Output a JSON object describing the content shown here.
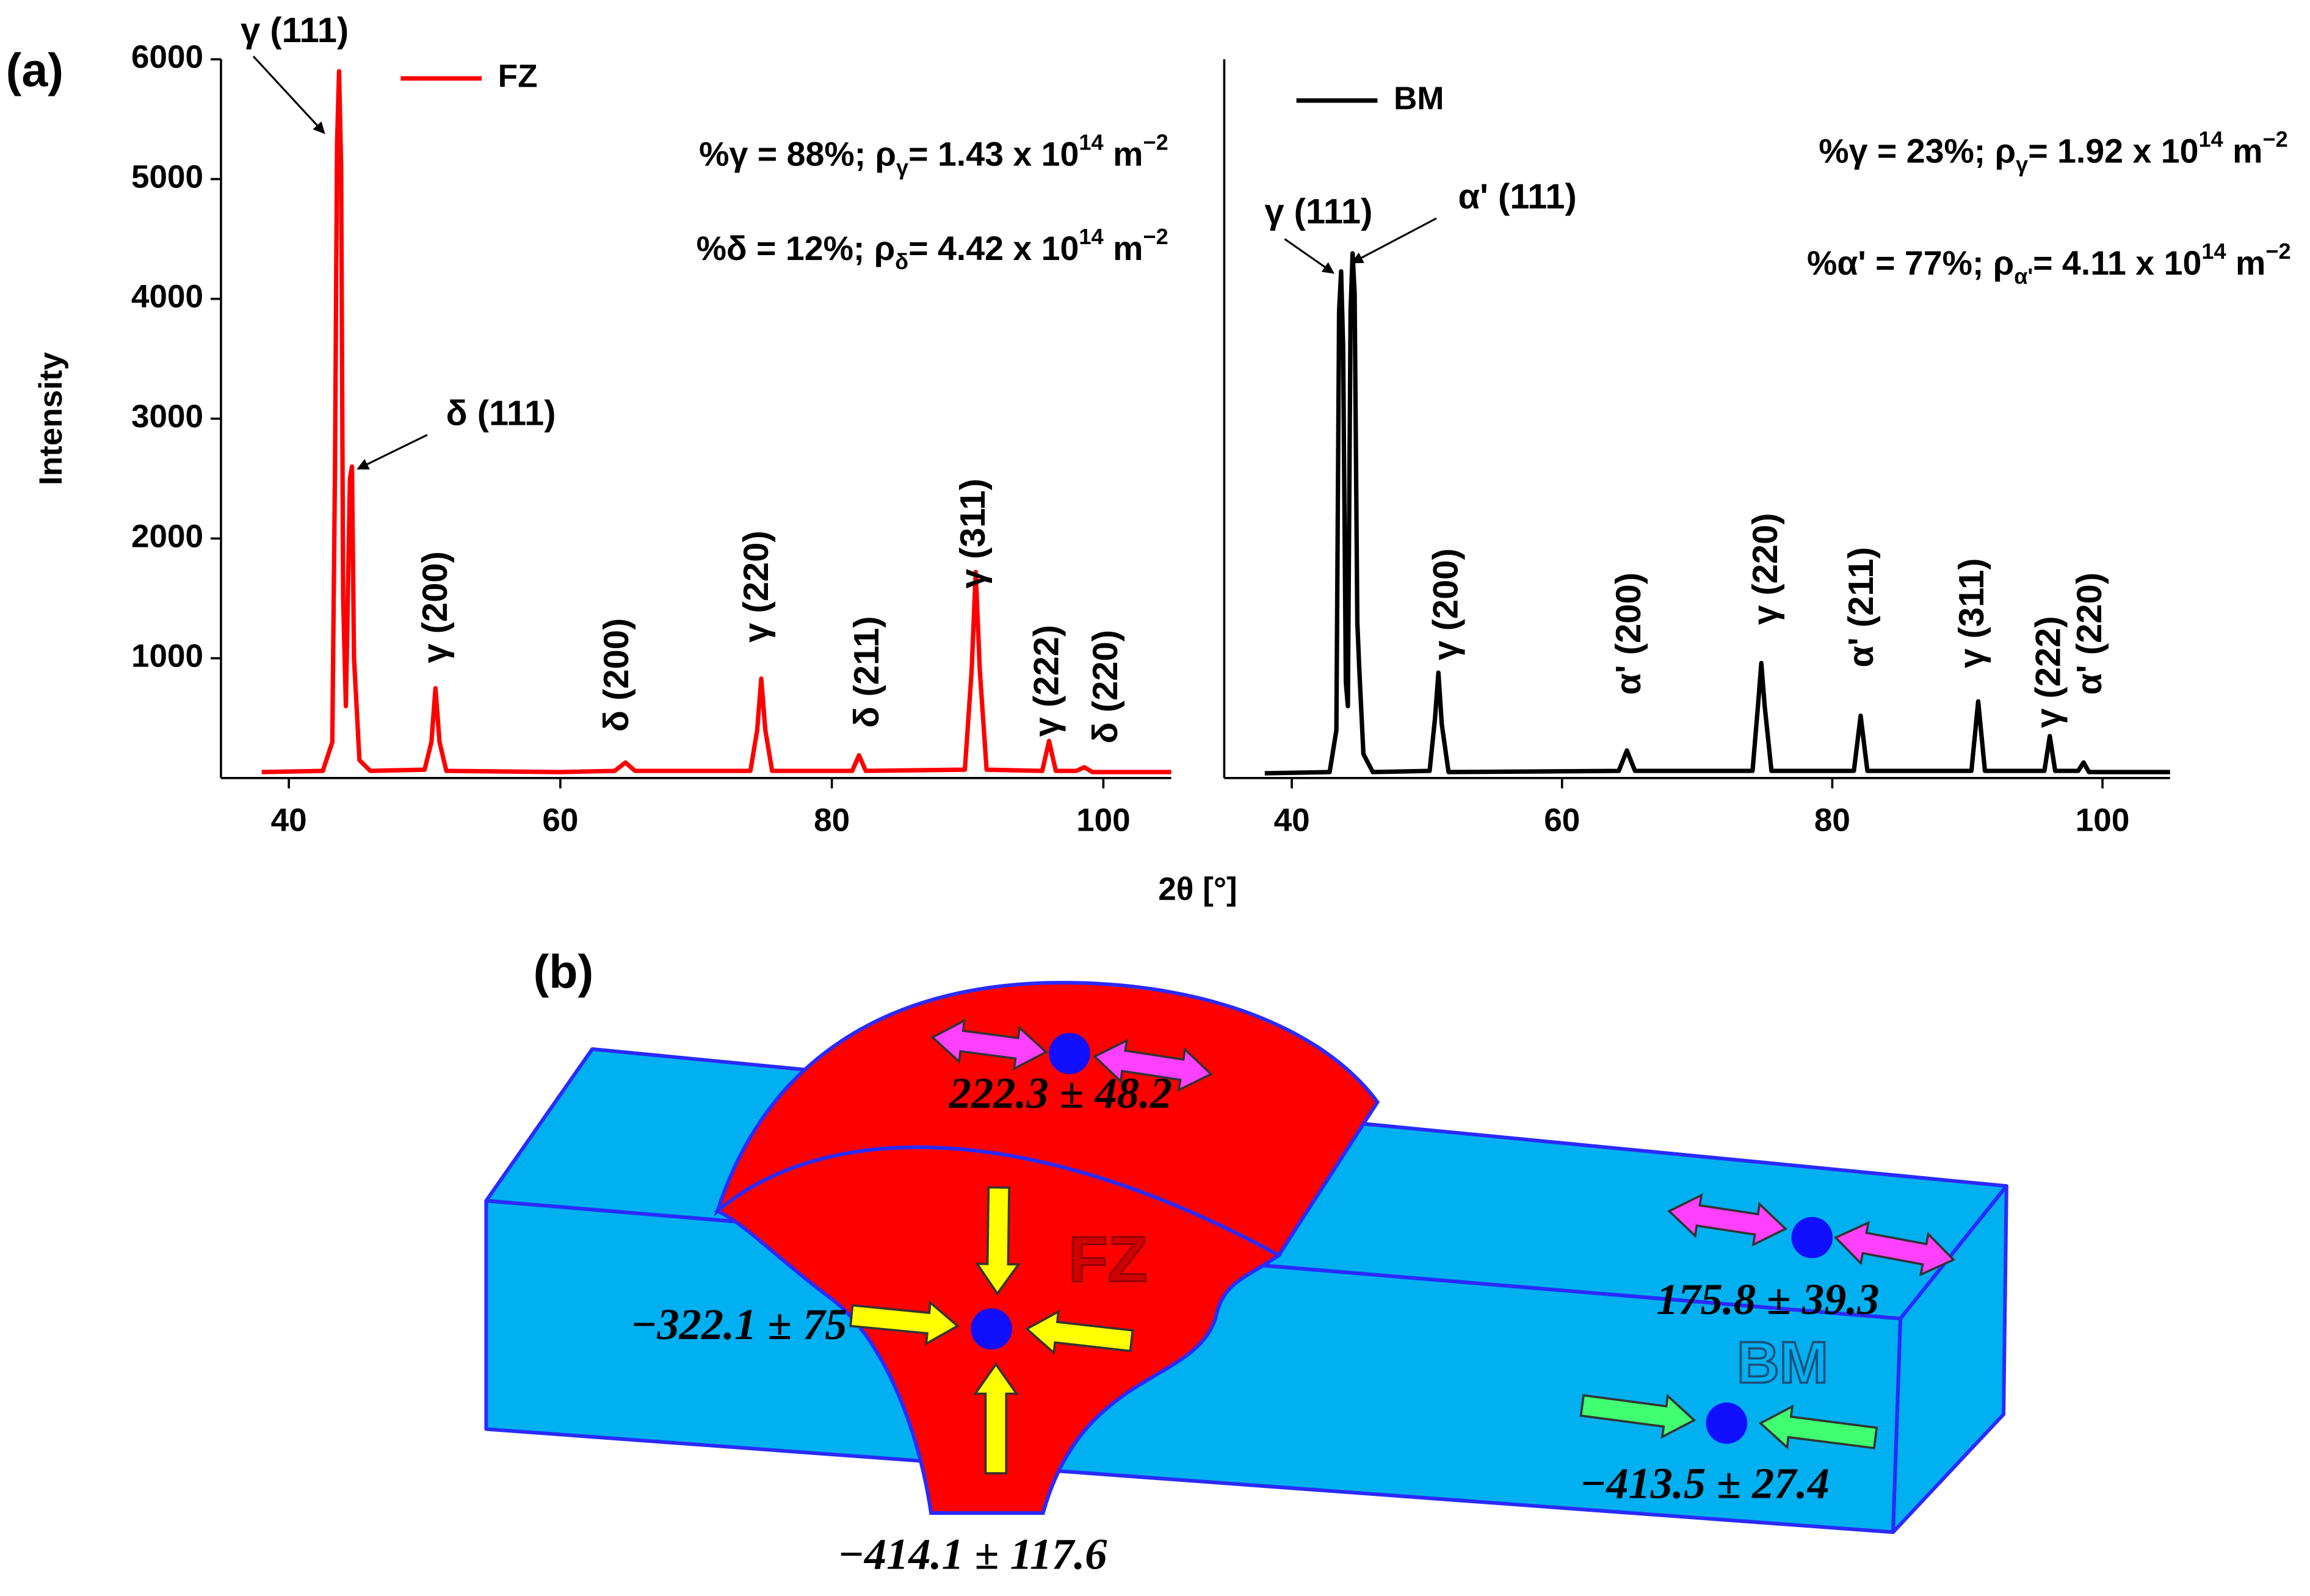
{
  "panels": {
    "a": "(a)",
    "b": "(b)"
  },
  "chart_data": [
    {
      "type": "line",
      "x_label": "2θ [°]",
      "y_label": "Intensity",
      "legend": "upper left",
      "xlim": [
        35,
        105
      ],
      "xticks": [
        40,
        60,
        80,
        100
      ],
      "ylim": [
        0,
        6000
      ],
      "yticks": [
        1000,
        2000,
        3000,
        4000,
        5000,
        6000
      ],
      "x": [
        38,
        42.5,
        43.2,
        43.4,
        43.55,
        43.7,
        43.85,
        44.0,
        44.2,
        44.5,
        44.65,
        44.8,
        45.2,
        46,
        50,
        50.5,
        50.8,
        51.1,
        51.6,
        60,
        64,
        64.8,
        65.5,
        74,
        74.5,
        74.8,
        75.1,
        75.6,
        81.5,
        82,
        82.5,
        89.8,
        90.3,
        90.6,
        90.9,
        91.4,
        95.5,
        96,
        96.5,
        98,
        98.6,
        99.2,
        105
      ],
      "series": [
        {
          "name": "FZ",
          "color": "#ff0000",
          "values": [
            50,
            60,
            300,
            2600,
            5300,
            5900,
            5100,
            1500,
            600,
            2500,
            2600,
            1000,
            150,
            60,
            70,
            300,
            750,
            300,
            60,
            50,
            60,
            130,
            60,
            60,
            400,
            830,
            400,
            60,
            60,
            190,
            60,
            70,
            900,
            1720,
            900,
            70,
            60,
            310,
            60,
            60,
            90,
            50,
            50
          ]
        }
      ],
      "peak_labels": [
        "γ (111)",
        "δ (111)",
        "γ (200)",
        "δ (200)",
        "γ (220)",
        "δ (211)",
        "γ (311)",
        "γ (222)",
        "δ (220)"
      ],
      "phase_info": [
        [
          {
            "text": "%γ = 88%;  ρ"
          },
          {
            "text": "γ",
            "shift": "sub"
          },
          {
            "text": "= 1.43 x 10"
          },
          {
            "text": "14",
            "shift": "super"
          },
          {
            "text": " m"
          },
          {
            "text": "−2",
            "shift": "super"
          }
        ],
        [
          {
            "text": "%δ = 12%;  ρ"
          },
          {
            "text": "δ",
            "shift": "sub"
          },
          {
            "text": "= 4.42 x 10"
          },
          {
            "text": "14",
            "shift": "super"
          },
          {
            "text": " m"
          },
          {
            "text": "−2",
            "shift": "super"
          }
        ]
      ]
    },
    {
      "type": "line",
      "legend": "upper left",
      "xlim": [
        35,
        105
      ],
      "xticks": [
        40,
        60,
        80,
        100
      ],
      "ylim": [
        0,
        6000
      ],
      "x": [
        38,
        42.8,
        43.3,
        43.5,
        43.65,
        43.8,
        44.0,
        44.15,
        44.35,
        44.5,
        44.65,
        44.85,
        45.0,
        45.3,
        46,
        50.2,
        50.6,
        50.85,
        51.1,
        51.6,
        64.2,
        64.8,
        65.4,
        74.1,
        74.5,
        74.75,
        75.0,
        75.5,
        81.6,
        82.1,
        82.6,
        90.3,
        90.8,
        91.3,
        95.7,
        96.1,
        96.5,
        98.2,
        98.6,
        99.0,
        105
      ],
      "series": [
        {
          "name": "BM",
          "color": "#000000",
          "values": [
            40,
            50,
            400,
            3900,
            4230,
            3600,
            800,
            600,
            3900,
            4380,
            4050,
            1300,
            900,
            200,
            50,
            60,
            500,
            880,
            450,
            50,
            60,
            230,
            60,
            60,
            600,
            960,
            600,
            60,
            60,
            520,
            60,
            60,
            640,
            60,
            60,
            350,
            60,
            60,
            130,
            50,
            50
          ]
        }
      ],
      "peak_labels": [
        "γ (111)",
        "α' (111)",
        "γ (200)",
        "α' (200)",
        "γ (220)",
        "α' (211)",
        "γ (311)",
        "γ (222)",
        "α' (220)"
      ],
      "phase_info": [
        [
          {
            "text": "%γ = 23%;  ρ"
          },
          {
            "text": "γ",
            "shift": "sub"
          },
          {
            "text": "= 1.92 x 10"
          },
          {
            "text": "14",
            "shift": "super"
          },
          {
            "text": " m"
          },
          {
            "text": "−2",
            "shift": "super"
          }
        ],
        [
          {
            "text": "%α' = 77%;  ρ"
          },
          {
            "text": "α'",
            "shift": "sub"
          },
          {
            "text": "= 4.11 x 10"
          },
          {
            "text": "14",
            "shift": "super"
          },
          {
            "text": " m"
          },
          {
            "text": "−2",
            "shift": "super"
          }
        ]
      ]
    }
  ],
  "diagram": {
    "zones": [
      "FZ",
      "BM"
    ],
    "stresses": [
      "222.3 ± 48.2",
      "−322.1 ± 75",
      "−414.1 ± 117.6",
      "175.8 ± 39.3",
      "−413.5 ± 27.4"
    ]
  }
}
